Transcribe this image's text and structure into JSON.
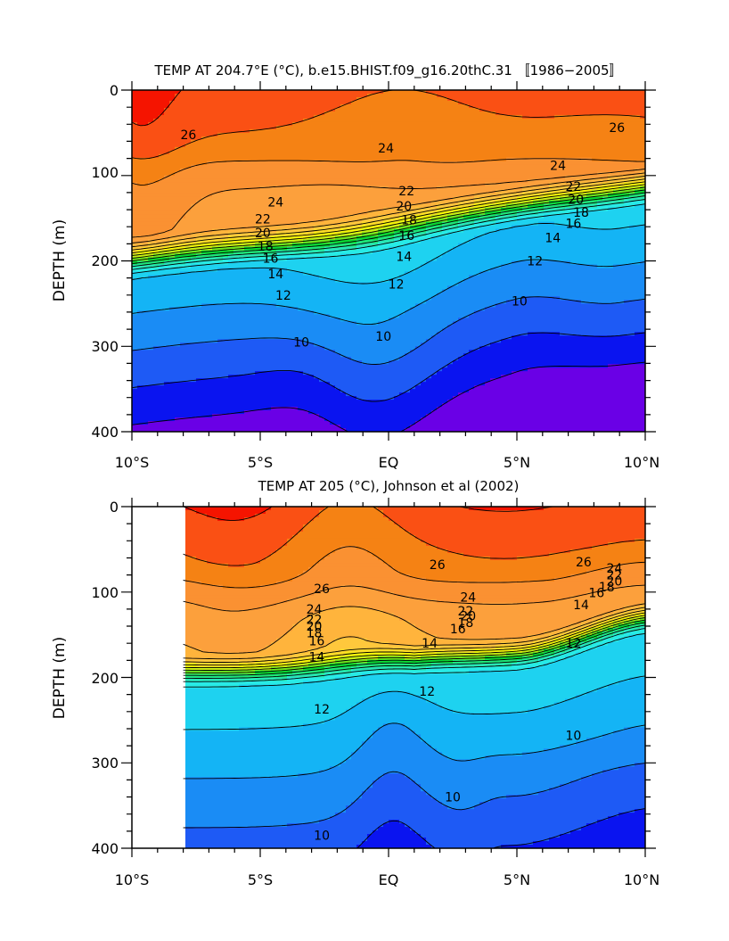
{
  "chart_data": [
    {
      "type": "heatmap",
      "subtype": "filled-contour",
      "title": "TEMP AT 204.7°E (°C), b.e15.BHIST.f09_g16.20thC.31 〚1986−2005〛",
      "xlabel": "",
      "ylabel": "DEPTH (m)",
      "xlim": [
        -10,
        10
      ],
      "ylim": [
        400,
        0
      ],
      "y_inverted": true,
      "x_ticks": [
        -10,
        -5,
        0,
        5,
        10
      ],
      "x_tick_labels": [
        "10°S",
        "5°S",
        "EQ",
        "5°N",
        "10°N"
      ],
      "y_ticks": [
        0,
        100,
        200,
        300,
        400
      ],
      "y_tick_labels": [
        "0",
        "100",
        "200",
        "300",
        "400"
      ],
      "contour_interval": 1,
      "labeled_levels": [
        10,
        12,
        14,
        16,
        18,
        20,
        22,
        24,
        26
      ],
      "contour_labels": [
        {
          "text": "26",
          "x": -7.8,
          "y": 52
        },
        {
          "text": "26",
          "x": 8.9,
          "y": 44
        },
        {
          "text": "24",
          "x": -0.1,
          "y": 68
        },
        {
          "text": "24",
          "x": 6.6,
          "y": 88
        },
        {
          "text": "24",
          "x": -4.4,
          "y": 131
        },
        {
          "text": "22",
          "x": 0.7,
          "y": 118
        },
        {
          "text": "22",
          "x": 7.2,
          "y": 113
        },
        {
          "text": "22",
          "x": -4.9,
          "y": 151
        },
        {
          "text": "20",
          "x": 0.6,
          "y": 136
        },
        {
          "text": "20",
          "x": 7.3,
          "y": 128
        },
        {
          "text": "20",
          "x": -4.9,
          "y": 167
        },
        {
          "text": "18",
          "x": 0.8,
          "y": 152
        },
        {
          "text": "18",
          "x": 7.5,
          "y": 143
        },
        {
          "text": "18",
          "x": -4.8,
          "y": 183
        },
        {
          "text": "16",
          "x": 0.7,
          "y": 170
        },
        {
          "text": "16",
          "x": 7.2,
          "y": 156
        },
        {
          "text": "16",
          "x": -4.6,
          "y": 197
        },
        {
          "text": "14",
          "x": 0.6,
          "y": 195
        },
        {
          "text": "14",
          "x": 6.4,
          "y": 173
        },
        {
          "text": "14",
          "x": -4.4,
          "y": 215
        },
        {
          "text": "12",
          "x": 0.3,
          "y": 227
        },
        {
          "text": "12",
          "x": 5.7,
          "y": 200
        },
        {
          "text": "12",
          "x": -4.1,
          "y": 240
        },
        {
          "text": "10",
          "x": -0.2,
          "y": 288
        },
        {
          "text": "10",
          "x": 5.1,
          "y": 247
        },
        {
          "text": "10",
          "x": -3.4,
          "y": 295
        }
      ]
    },
    {
      "type": "heatmap",
      "subtype": "filled-contour",
      "title": "TEMP AT 205 (°C), Johnson et al (2002)",
      "xlabel": "",
      "ylabel": "DEPTH (m)",
      "xlim": [
        -10,
        10
      ],
      "ylim": [
        400,
        0
      ],
      "y_inverted": true,
      "data_x_range": [
        -8,
        10
      ],
      "x_ticks": [
        -10,
        -5,
        0,
        5,
        10
      ],
      "x_tick_labels": [
        "10°S",
        "5°S",
        "EQ",
        "5°N",
        "10°N"
      ],
      "y_ticks": [
        0,
        100,
        200,
        300,
        400
      ],
      "y_tick_labels": [
        "0",
        "100",
        "200",
        "300",
        "400"
      ],
      "contour_interval": 1,
      "labeled_levels": [
        10,
        12,
        14,
        16,
        18,
        20,
        22,
        24,
        26
      ],
      "contour_labels": [
        {
          "text": "26",
          "x": -2.6,
          "y": 96
        },
        {
          "text": "26",
          "x": 1.9,
          "y": 68
        },
        {
          "text": "26",
          "x": 7.6,
          "y": 65
        },
        {
          "text": "24",
          "x": -2.9,
          "y": 120
        },
        {
          "text": "24",
          "x": 3.1,
          "y": 106
        },
        {
          "text": "24",
          "x": 8.8,
          "y": 72
        },
        {
          "text": "22",
          "x": -2.9,
          "y": 132
        },
        {
          "text": "22",
          "x": 3.0,
          "y": 122
        },
        {
          "text": "22",
          "x": 8.8,
          "y": 80
        },
        {
          "text": "20",
          "x": -2.9,
          "y": 140
        },
        {
          "text": "20",
          "x": 3.1,
          "y": 128
        },
        {
          "text": "20",
          "x": 8.8,
          "y": 87
        },
        {
          "text": "18",
          "x": -2.9,
          "y": 148
        },
        {
          "text": "18",
          "x": 3.0,
          "y": 136
        },
        {
          "text": "18",
          "x": 8.5,
          "y": 94
        },
        {
          "text": "16",
          "x": -2.8,
          "y": 157
        },
        {
          "text": "16",
          "x": 2.7,
          "y": 143
        },
        {
          "text": "16",
          "x": 8.1,
          "y": 101
        },
        {
          "text": "14",
          "x": -2.8,
          "y": 176
        },
        {
          "text": "14",
          "x": 1.6,
          "y": 160
        },
        {
          "text": "14",
          "x": 7.5,
          "y": 115
        },
        {
          "text": "12",
          "x": -2.6,
          "y": 237
        },
        {
          "text": "12",
          "x": 1.5,
          "y": 216
        },
        {
          "text": "12",
          "x": 7.2,
          "y": 160
        },
        {
          "text": "10",
          "x": -2.6,
          "y": 385
        },
        {
          "text": "10",
          "x": 2.5,
          "y": 340
        },
        {
          "text": "10",
          "x": 7.2,
          "y": 268
        }
      ]
    }
  ],
  "colors": {
    "t_below_9": "#6a00e6",
    "t_9_10": "#0a14f0",
    "t_10_11": "#1e5af5",
    "t_11_12": "#1a8cf5",
    "t_12_13": "#14b4f5",
    "t_13_14": "#1ed2f0",
    "t_14_15": "#28ebe6",
    "t_15_16": "#28e6b4",
    "t_16_17": "#1ee678",
    "t_17_18": "#0ad732",
    "t_18_19": "#6ee61e",
    "t_19_20": "#c8f014",
    "t_20_21": "#f5f50a",
    "t_21_22": "#ffdc28",
    "t_22_23": "#ffc83c",
    "t_23_24": "#ffb43c",
    "t_24_25": "#fca03c",
    "t_25_26": "#fa9132",
    "t_26_27": "#f58214",
    "t_27_28": "#fa5014",
    "t_above_28": "#f51400"
  }
}
